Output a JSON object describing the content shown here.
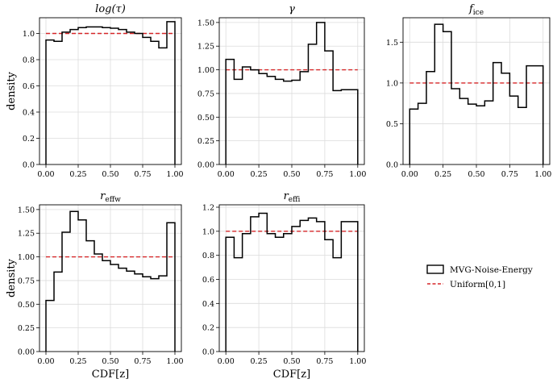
{
  "chart_data": [
    {
      "type": "histogram",
      "title": "log(τ)",
      "ylabel": "density",
      "xlabel": "",
      "xlim": [
        -0.05,
        1.05
      ],
      "ylim": [
        0,
        1.12
      ],
      "xticks": [
        "0.00",
        "0.25",
        "0.50",
        "0.75",
        "1.00"
      ],
      "yticks": [
        "0.0",
        "0.2",
        "0.4",
        "0.6",
        "0.8",
        "1.0"
      ],
      "bin_edges": [
        0,
        0.0625,
        0.125,
        0.1875,
        0.25,
        0.3125,
        0.375,
        0.4375,
        0.5,
        0.5625,
        0.625,
        0.6875,
        0.75,
        0.8125,
        0.875,
        0.9375,
        1.0
      ],
      "density": [
        0.95,
        0.94,
        1.01,
        1.03,
        1.045,
        1.05,
        1.05,
        1.045,
        1.04,
        1.03,
        1.01,
        1.0,
        0.97,
        0.94,
        0.89,
        1.09
      ],
      "reference": 1.0,
      "grid": true
    },
    {
      "type": "histogram",
      "title": "γ",
      "ylabel": "",
      "xlabel": "",
      "xlim": [
        -0.05,
        1.05
      ],
      "ylim": [
        0,
        1.55
      ],
      "xticks": [
        "0.00",
        "0.25",
        "0.50",
        "0.75",
        "1.00"
      ],
      "yticks": [
        "0.00",
        "0.25",
        "0.50",
        "0.75",
        "1.00",
        "1.25",
        "1.50"
      ],
      "bin_edges": [
        0,
        0.0625,
        0.125,
        0.1875,
        0.25,
        0.3125,
        0.375,
        0.4375,
        0.5,
        0.5625,
        0.625,
        0.6875,
        0.75,
        0.8125,
        0.875,
        0.9375,
        1.0
      ],
      "density": [
        1.11,
        0.9,
        1.03,
        1.0,
        0.96,
        0.93,
        0.9,
        0.88,
        0.89,
        0.98,
        1.27,
        1.5,
        1.2,
        0.78,
        0.79,
        0.79
      ],
      "reference": 1.0,
      "grid": true
    },
    {
      "type": "histogram",
      "title": "f",
      "title_sub": "ice",
      "ylabel": "",
      "xlabel": "",
      "xlim": [
        -0.05,
        1.05
      ],
      "ylim": [
        0,
        1.8
      ],
      "xticks": [
        "0.00",
        "0.25",
        "0.50",
        "0.75",
        "1.00"
      ],
      "yticks": [
        "0.0",
        "0.5",
        "1.0",
        "1.5"
      ],
      "bin_edges": [
        0,
        0.0625,
        0.125,
        0.1875,
        0.25,
        0.3125,
        0.375,
        0.4375,
        0.5,
        0.5625,
        0.625,
        0.6875,
        0.75,
        0.8125,
        0.875,
        0.9375,
        1.0
      ],
      "density": [
        0.68,
        0.75,
        1.14,
        1.72,
        1.63,
        0.93,
        0.81,
        0.74,
        0.72,
        0.78,
        1.25,
        1.12,
        0.84,
        0.7,
        1.21,
        1.21
      ],
      "reference": 1.0,
      "grid": true
    },
    {
      "type": "histogram",
      "title": "r",
      "title_sub": "effw",
      "ylabel": "density",
      "xlabel": "CDF[z]",
      "xlim": [
        -0.05,
        1.05
      ],
      "ylim": [
        0,
        1.55
      ],
      "xticks": [
        "0.00",
        "0.25",
        "0.50",
        "0.75",
        "1.00"
      ],
      "yticks": [
        "0.00",
        "0.25",
        "0.50",
        "0.75",
        "1.00",
        "1.25",
        "1.50"
      ],
      "bin_edges": [
        0,
        0.0625,
        0.125,
        0.1875,
        0.25,
        0.3125,
        0.375,
        0.4375,
        0.5,
        0.5625,
        0.625,
        0.6875,
        0.75,
        0.8125,
        0.875,
        0.9375,
        1.0
      ],
      "density": [
        0.54,
        0.84,
        1.26,
        1.48,
        1.39,
        1.17,
        1.03,
        0.96,
        0.92,
        0.88,
        0.85,
        0.82,
        0.79,
        0.77,
        0.8,
        1.36
      ],
      "reference": 1.0,
      "grid": true
    },
    {
      "type": "histogram",
      "title": "r",
      "title_sub": "effi",
      "ylabel": "",
      "xlabel": "CDF[z]",
      "xlim": [
        -0.05,
        1.05
      ],
      "ylim": [
        0,
        1.22
      ],
      "xticks": [
        "0.00",
        "0.25",
        "0.50",
        "0.75",
        "1.00"
      ],
      "yticks": [
        "0.0",
        "0.2",
        "0.4",
        "0.6",
        "0.8",
        "1.0",
        "1.2"
      ],
      "bin_edges": [
        0,
        0.0625,
        0.125,
        0.1875,
        0.25,
        0.3125,
        0.375,
        0.4375,
        0.5,
        0.5625,
        0.625,
        0.6875,
        0.75,
        0.8125,
        0.875,
        0.9375,
        1.0
      ],
      "density": [
        0.95,
        0.78,
        0.98,
        1.12,
        1.15,
        0.98,
        0.95,
        0.98,
        1.04,
        1.09,
        1.11,
        1.08,
        0.93,
        0.78,
        1.08,
        1.08
      ],
      "reference": 1.0,
      "grid": true
    }
  ],
  "legend": {
    "placement": "right",
    "entries": [
      {
        "label": "MVG-Noise-Energy",
        "style": "step",
        "color": "#000000"
      },
      {
        "label": "Uniform[0,1]",
        "style": "dashed",
        "color": "#d62728"
      }
    ]
  },
  "colors": {
    "histogram": "#000000",
    "reference": "#d62728",
    "grid": "#dcdcdc"
  }
}
